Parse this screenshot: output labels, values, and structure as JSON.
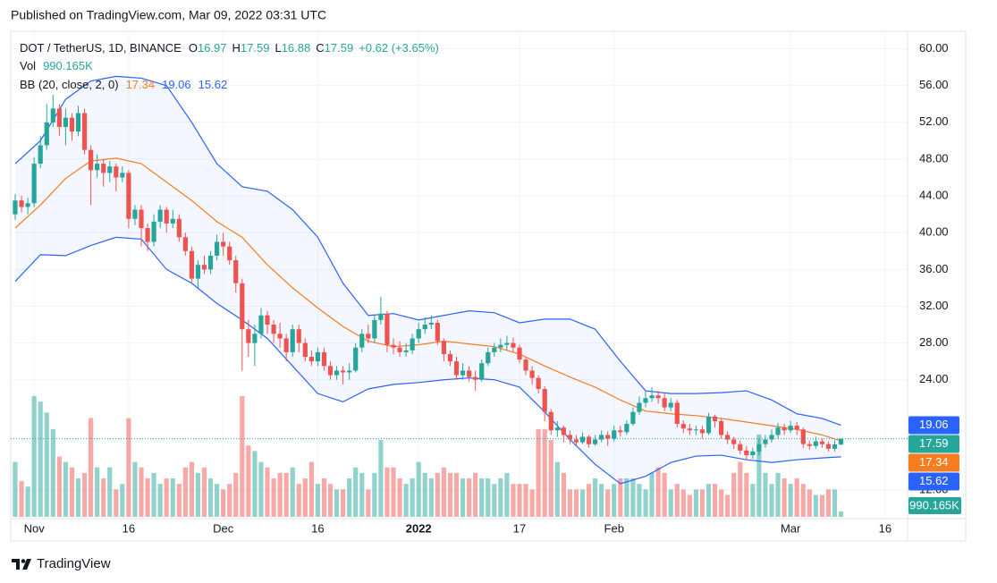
{
  "header": {
    "published": "Published on TradingView.com, Mar 09, 2022 03:31 UTC"
  },
  "footer": {
    "brand": "TradingView"
  },
  "chart_data": {
    "type": "candlestick",
    "symbol": "DOT / TetherUS, 1D, BINANCE",
    "ohlc_letters": [
      "O",
      "H",
      "L",
      "C"
    ],
    "change_label": "+0.62 (+3.65%)",
    "volume_name": "Vol",
    "volume_value_label": "990.165K",
    "bb_name": "BB (20, close, 2, 0)",
    "up_color": "#26a69a",
    "down_color": "#ef5350",
    "bb_band_color": "#2962ff",
    "bb_basis_color": "#f57c1f",
    "open": [
      42.0,
      43.5,
      42.8,
      43.2,
      47.5,
      49.5,
      52.0,
      53.5,
      51.5,
      52.5,
      51.0,
      53.0,
      49.0,
      46.8,
      47.5,
      46.5,
      47.2,
      46.0,
      46.5,
      41.5,
      42.5,
      40.5,
      39.0,
      41.2,
      42.5,
      41.0,
      41.5,
      39.5,
      38.0,
      35.0,
      36.5,
      36.0,
      37.5,
      39.0,
      38.5,
      37.0,
      34.5,
      29.5,
      28.0,
      29.0,
      31.0,
      30.0,
      29.0,
      28.5,
      27.0,
      29.5,
      28.0,
      26.5,
      26.0,
      27.0,
      25.5,
      24.5,
      25.0,
      24.8,
      25.0,
      27.5,
      29.0,
      28.5,
      30.5,
      31.2,
      27.8,
      27.5,
      27.0,
      27.2,
      28.5,
      29.5,
      30.0,
      30.2,
      28.2,
      26.8,
      26.0,
      24.5,
      25.0,
      24.3,
      24.0,
      25.8,
      27.0,
      27.5,
      27.8,
      28.0,
      27.5,
      26.2,
      25.0,
      24.2,
      23.0,
      20.5,
      18.5,
      18.8,
      18.0,
      17.5,
      17.2,
      17.8,
      17.0,
      17.5,
      18.0,
      17.6,
      18.5,
      18.3,
      19.2,
      20.5,
      21.5,
      22.0,
      22.3,
      22.0,
      21.0,
      21.5,
      19.2,
      18.7,
      18.5,
      18.6,
      18.2,
      20.0,
      19.5,
      18.0,
      17.5,
      17.0,
      16.3,
      15.8,
      16.2,
      17.0,
      17.5,
      18.0,
      18.8,
      18.5,
      19.0,
      18.6,
      17.0,
      16.8,
      17.3,
      17.0,
      16.5,
      16.97
    ],
    "high": [
      44.2,
      44.0,
      43.8,
      48.2,
      50.5,
      54.0,
      55.0,
      54.0,
      53.5,
      53.0,
      53.8,
      53.5,
      49.5,
      48.5,
      48.0,
      47.8,
      47.5,
      47.2,
      46.8,
      43.0,
      43.0,
      41.0,
      42.0,
      43.0,
      42.8,
      42.5,
      42.0,
      40.0,
      38.5,
      37.0,
      37.5,
      38.0,
      39.8,
      40.0,
      39.0,
      37.5,
      35.0,
      30.5,
      30.0,
      31.8,
      31.5,
      30.5,
      30.2,
      29.0,
      30.0,
      30.0,
      28.5,
      27.2,
      27.5,
      27.5,
      26.0,
      25.5,
      25.5,
      25.8,
      28.0,
      29.5,
      30.0,
      31.0,
      33.0,
      31.5,
      28.5,
      28.2,
      28.0,
      29.0,
      30.2,
      30.8,
      31.0,
      30.5,
      28.5,
      27.2,
      26.5,
      25.8,
      25.5,
      25.0,
      26.2,
      27.5,
      28.0,
      28.5,
      28.8,
      28.6,
      27.8,
      26.5,
      25.5,
      24.5,
      23.3,
      20.8,
      19.5,
      19.0,
      18.5,
      18.0,
      18.3,
      18.0,
      18.0,
      18.5,
      18.4,
      19.0,
      19.0,
      19.6,
      21.0,
      22.2,
      22.8,
      23.2,
      22.8,
      22.5,
      22.0,
      21.8,
      19.6,
      19.2,
      19.0,
      19.0,
      20.4,
      20.2,
      19.8,
      18.4,
      17.8,
      17.4,
      16.8,
      16.6,
      17.6,
      18.0,
      18.6,
      19.3,
      19.2,
      19.5,
      19.4,
      18.8,
      17.4,
      17.8,
      17.6,
      17.3,
      17.4,
      17.59
    ],
    "low": [
      41.4,
      42.2,
      42.0,
      42.8,
      47.0,
      49.0,
      51.5,
      50.5,
      49.5,
      50.0,
      50.5,
      48.5,
      43.0,
      46.0,
      45.0,
      45.5,
      44.5,
      45.5,
      40.5,
      40.8,
      38.5,
      38.0,
      38.5,
      40.5,
      40.0,
      40.5,
      39.0,
      37.5,
      34.5,
      34.0,
      35.5,
      35.5,
      37.0,
      37.5,
      36.5,
      33.5,
      25.0,
      26.5,
      25.5,
      28.5,
      29.0,
      28.0,
      27.5,
      26.0,
      26.5,
      27.0,
      26.0,
      25.5,
      25.5,
      25.0,
      24.0,
      24.0,
      23.5,
      24.0,
      24.8,
      27.0,
      28.0,
      28.0,
      30.0,
      27.0,
      26.8,
      26.5,
      26.5,
      26.8,
      28.0,
      29.0,
      29.5,
      27.8,
      26.0,
      25.5,
      24.0,
      24.0,
      23.8,
      22.8,
      23.8,
      25.5,
      26.5,
      27.0,
      27.2,
      27.0,
      25.8,
      24.5,
      23.5,
      22.5,
      19.5,
      18.0,
      17.8,
      17.2,
      17.0,
      16.8,
      17.0,
      16.6,
      16.8,
      17.2,
      16.8,
      17.3,
      17.8,
      18.0,
      19.0,
      20.2,
      21.0,
      21.6,
      21.4,
      20.6,
      20.6,
      18.8,
      18.2,
      18.0,
      18.0,
      17.6,
      18.0,
      18.8,
      17.6,
      17.0,
      16.5,
      15.9,
      15.3,
      15.4,
      15.8,
      16.6,
      17.2,
      17.6,
      18.0,
      18.2,
      18.0,
      16.6,
      16.4,
      16.5,
      16.6,
      16.2,
      16.2,
      16.88
    ],
    "close": [
      43.5,
      42.8,
      43.2,
      47.5,
      49.5,
      52.0,
      53.5,
      51.5,
      52.5,
      51.0,
      53.0,
      49.0,
      46.8,
      47.5,
      46.5,
      47.2,
      46.0,
      46.5,
      41.5,
      42.5,
      40.5,
      39.0,
      41.2,
      42.5,
      41.0,
      41.5,
      39.5,
      38.0,
      35.0,
      36.5,
      36.0,
      37.5,
      39.0,
      38.5,
      37.0,
      34.5,
      29.5,
      28.0,
      29.0,
      31.0,
      30.0,
      29.0,
      28.5,
      27.0,
      29.5,
      28.0,
      26.5,
      26.0,
      27.0,
      25.5,
      24.5,
      25.0,
      24.8,
      25.0,
      27.5,
      29.0,
      28.5,
      30.5,
      31.2,
      27.8,
      27.5,
      27.0,
      27.2,
      28.5,
      29.5,
      30.0,
      30.2,
      28.2,
      26.8,
      26.0,
      24.5,
      25.0,
      24.3,
      24.0,
      25.8,
      27.0,
      27.5,
      27.8,
      28.0,
      27.5,
      26.2,
      25.0,
      24.2,
      23.0,
      20.5,
      18.5,
      18.8,
      18.0,
      17.5,
      17.2,
      17.8,
      17.0,
      17.5,
      18.0,
      17.6,
      18.5,
      18.3,
      19.2,
      20.5,
      21.5,
      22.0,
      22.3,
      22.0,
      21.0,
      21.5,
      19.2,
      18.7,
      18.5,
      18.6,
      18.2,
      20.0,
      19.5,
      18.0,
      17.5,
      17.0,
      16.3,
      15.8,
      16.2,
      17.0,
      17.5,
      18.0,
      18.8,
      18.5,
      19.0,
      18.6,
      17.0,
      16.8,
      17.3,
      17.0,
      16.5,
      16.97,
      17.59
    ],
    "volume": [
      10000000,
      6500000,
      5500000,
      22000000,
      21000000,
      19000000,
      16000000,
      11000000,
      10000000,
      9000000,
      7000000,
      8000000,
      18000000,
      9000000,
      7000000,
      9000000,
      5000000,
      6000000,
      18000000,
      10000000,
      9000000,
      7000000,
      8000000,
      6000000,
      7000000,
      7000000,
      6000000,
      9000000,
      10000000,
      8000000,
      9000000,
      7000000,
      6000000,
      5000000,
      6000000,
      8000000,
      22000000,
      13000000,
      12000000,
      10000000,
      9000000,
      7000000,
      8000000,
      8000000,
      9000000,
      6000000,
      7000000,
      10000000,
      6000000,
      7000000,
      6000000,
      5000000,
      5000000,
      7000000,
      9000000,
      8000000,
      5000000,
      8000000,
      14000000,
      9000000,
      9000000,
      7000000,
      6000000,
      7000000,
      10000000,
      8000000,
      7000000,
      8000000,
      9000000,
      8000000,
      8000000,
      7000000,
      7000000,
      8000000,
      7000000,
      7000000,
      6000000,
      7000000,
      8000000,
      6000000,
      6000000,
      6000000,
      5000000,
      16000000,
      16000000,
      14000000,
      10000000,
      8000000,
      5000000,
      5000000,
      5000000,
      6000000,
      7000000,
      6000000,
      5000000,
      6000000,
      7000000,
      7000000,
      7000000,
      6000000,
      5000000,
      8000000,
      9000000,
      8000000,
      5000000,
      6000000,
      5000000,
      4000000,
      5000000,
      5000000,
      6000000,
      6000000,
      5000000,
      4000000,
      8000000,
      10000000,
      8000000,
      6000000,
      15000000,
      8000000,
      6000000,
      8000000,
      7000000,
      6000000,
      7000000,
      6000000,
      5000000,
      4000000,
      4000000,
      5000000,
      5000000,
      990165
    ],
    "bb_x": [
      0,
      4,
      8,
      12,
      16,
      20,
      24,
      28,
      32,
      36,
      40,
      44,
      48,
      52,
      56,
      60,
      64,
      68,
      72,
      76,
      80,
      84,
      88,
      92,
      96,
      100,
      104,
      108,
      112,
      116,
      120,
      124,
      128,
      131
    ],
    "bb_upper": [
      47.5,
      50,
      54.5,
      56.5,
      57,
      56.8,
      56,
      52,
      47.5,
      45,
      44.5,
      42.5,
      39.5,
      34.5,
      31,
      31.2,
      30.5,
      31,
      31.5,
      31.3,
      30.2,
      30.6,
      30.6,
      29.5,
      26,
      22.8,
      22.5,
      22.5,
      22.6,
      22.8,
      21.8,
      20.3,
      19.8,
      19.06
    ],
    "bb_middle": [
      40.5,
      43,
      45.9,
      47.8,
      48.1,
      47.5,
      45.5,
      43.5,
      41.2,
      39.5,
      36.5,
      34,
      31.8,
      29.8,
      28.2,
      27.6,
      27.8,
      28.2,
      27.9,
      27.6,
      26.8,
      25.5,
      24.3,
      23.2,
      21.8,
      20.6,
      20.3,
      20.1,
      19.8,
      19.4,
      19,
      18.6,
      18,
      17.34
    ],
    "bb_lower": [
      34.7,
      37.6,
      37.5,
      38.6,
      39.5,
      39.3,
      36,
      34.5,
      32.3,
      30.5,
      28.5,
      25.5,
      22.5,
      21.6,
      23,
      23.5,
      23.7,
      24,
      24.2,
      24,
      23.2,
      20.5,
      17.5,
      14.8,
      12.7,
      13.5,
      15,
      15.7,
      15.8,
      15.3,
      15,
      15.3,
      15.5,
      15.62
    ],
    "xlim": [
      -0.71,
      141.56
    ],
    "xticks": [
      {
        "value": 3,
        "label": "Nov"
      },
      {
        "value": 18,
        "label": "16"
      },
      {
        "value": 33,
        "label": "Dec"
      },
      {
        "value": 48,
        "label": "16"
      },
      {
        "value": 64,
        "label": "2022"
      },
      {
        "value": 80,
        "label": "17"
      },
      {
        "value": 95,
        "label": "Feb"
      },
      {
        "value": 123,
        "label": "Mar"
      },
      {
        "value": 138,
        "label": "16"
      }
    ],
    "ylim": [
      8.9,
      61.9
    ],
    "yticks": [
      {
        "value": 12,
        "label": "12.00"
      },
      {
        "value": 24,
        "label": "24.00"
      },
      {
        "value": 28,
        "label": "28.00"
      },
      {
        "value": 32,
        "label": "32.00"
      },
      {
        "value": 36,
        "label": "36.00"
      },
      {
        "value": 40,
        "label": "40.00"
      },
      {
        "value": 44,
        "label": "44.00"
      },
      {
        "value": 48,
        "label": "48.00"
      },
      {
        "value": 52,
        "label": "52.00"
      },
      {
        "value": 56,
        "label": "56.00"
      },
      {
        "value": 60,
        "label": "60.00"
      }
    ],
    "grid": true
  }
}
